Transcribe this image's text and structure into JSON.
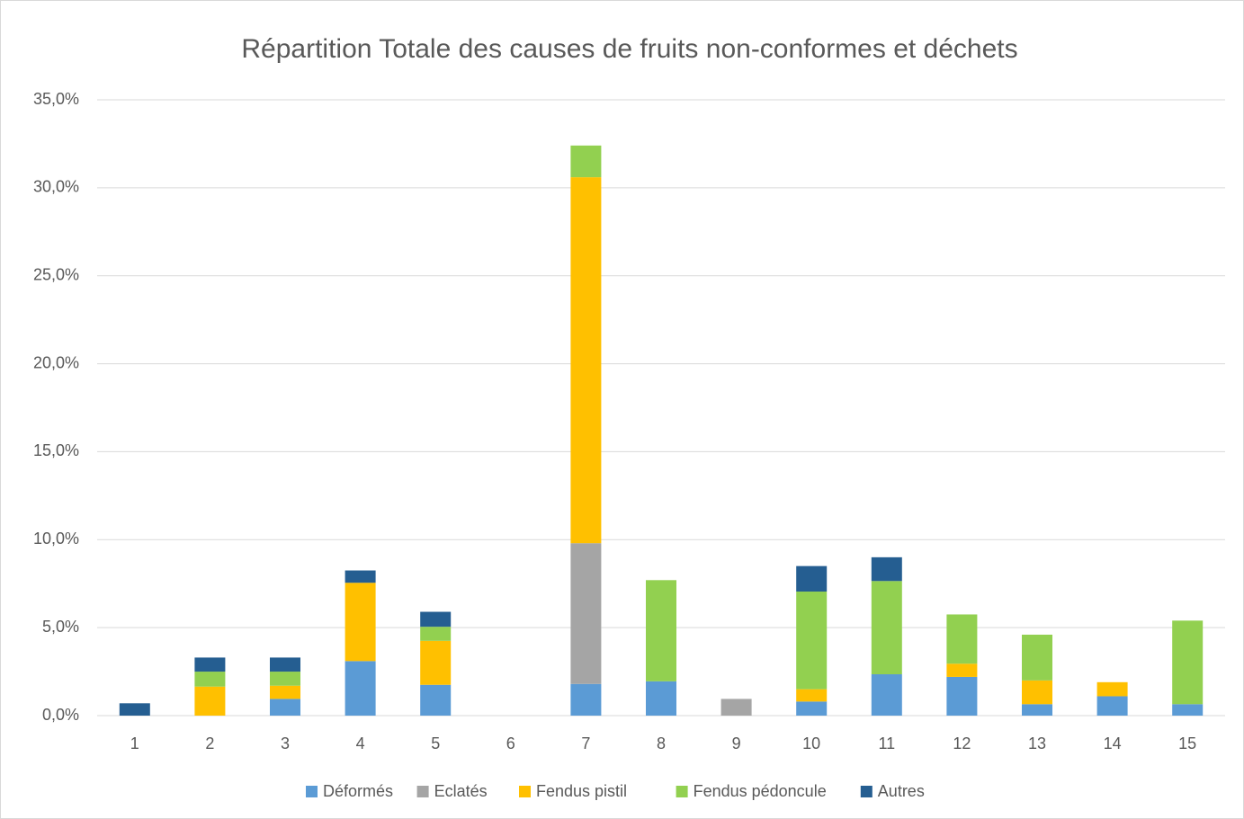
{
  "chart_data": {
    "type": "stacked_bar",
    "title": "Répartition Totale des causes de fruits non-conformes et déchets",
    "categories": [
      "1",
      "2",
      "3",
      "4",
      "5",
      "6",
      "7",
      "8",
      "9",
      "10",
      "11",
      "12",
      "13",
      "14",
      "15"
    ],
    "series": [
      {
        "name": "Déformés",
        "color": "#5b9bd5",
        "values": [
          0,
          0,
          0.95,
          3.1,
          1.75,
          0,
          1.8,
          1.95,
          0,
          0.8,
          2.35,
          2.2,
          0.65,
          1.1,
          0.65
        ]
      },
      {
        "name": "Eclatés",
        "color": "#a5a5a5",
        "values": [
          0,
          0,
          0,
          0,
          0,
          0,
          8.0,
          0,
          0.95,
          0,
          0,
          0,
          0,
          0,
          0
        ]
      },
      {
        "name": "Fendus pistil",
        "color": "#ffc000",
        "values": [
          0,
          1.65,
          0.75,
          4.45,
          2.5,
          0,
          20.8,
          0,
          0,
          0.7,
          0,
          0.75,
          1.35,
          0.8,
          0
        ]
      },
      {
        "name": "Fendus pédoncule",
        "color": "#92d050",
        "values": [
          0,
          0.85,
          0.8,
          0,
          0.8,
          0,
          1.8,
          5.75,
          0,
          5.55,
          5.3,
          2.8,
          2.6,
          0,
          4.75
        ]
      },
      {
        "name": "Autres",
        "color": "#255e91",
        "values": [
          0.7,
          0.8,
          0.8,
          0.7,
          0.85,
          0,
          0,
          0,
          0,
          1.45,
          1.35,
          0,
          0,
          0,
          0
        ]
      }
    ],
    "ylim": [
      0,
      35
    ],
    "yticks": [
      {
        "value": 0,
        "label": "0,0%"
      },
      {
        "value": 5,
        "label": "5,0%"
      },
      {
        "value": 10,
        "label": "10,0%"
      },
      {
        "value": 15,
        "label": "15,0%"
      },
      {
        "value": 20,
        "label": "20,0%"
      },
      {
        "value": 25,
        "label": "25,0%"
      },
      {
        "value": 30,
        "label": "30,0%"
      },
      {
        "value": 35,
        "label": "35,0%"
      }
    ],
    "grid": true,
    "legend": "bottom"
  }
}
